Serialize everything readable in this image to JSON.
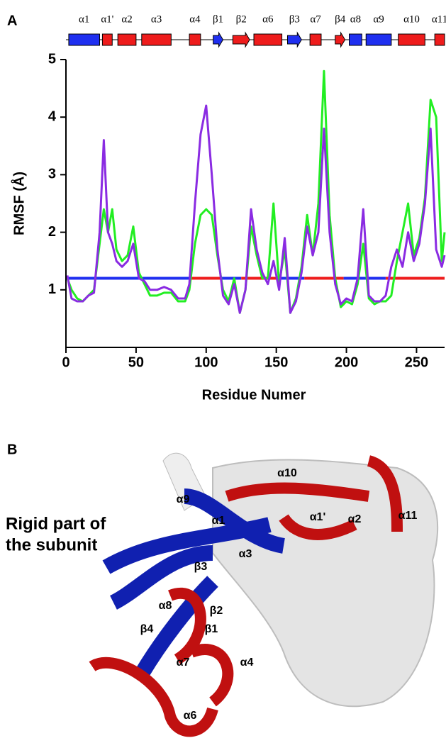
{
  "chart_data": {
    "type": "line",
    "panel_label": "A",
    "xlabel": "Residue Numer",
    "ylabel": "RMSF (Å)",
    "xlim": [
      0,
      270
    ],
    "xticks": [
      0,
      50,
      100,
      150,
      200,
      250
    ],
    "ylim": [
      0,
      5
    ],
    "yticks": [
      1,
      2,
      3,
      4,
      5
    ],
    "x": [
      1,
      4,
      8,
      12,
      16,
      20,
      24,
      27,
      30,
      33,
      36,
      40,
      44,
      48,
      52,
      56,
      60,
      65,
      70,
      75,
      80,
      85,
      88,
      92,
      96,
      100,
      104,
      108,
      112,
      116,
      120,
      124,
      128,
      132,
      136,
      140,
      144,
      148,
      152,
      156,
      160,
      164,
      168,
      172,
      176,
      180,
      184,
      188,
      192,
      196,
      200,
      204,
      208,
      212,
      216,
      220,
      224,
      228,
      232,
      236,
      240,
      244,
      248,
      252,
      256,
      260,
      264,
      268,
      270
    ],
    "series": [
      {
        "color": "#22ee22",
        "values": [
          1.2,
          1.0,
          0.85,
          0.8,
          0.9,
          1.0,
          1.8,
          2.4,
          2.0,
          2.4,
          1.7,
          1.5,
          1.6,
          2.1,
          1.3,
          1.1,
          0.9,
          0.9,
          0.95,
          0.95,
          0.8,
          0.8,
          1.0,
          1.8,
          2.3,
          2.4,
          2.3,
          1.6,
          1.0,
          0.8,
          1.2,
          0.6,
          1.0,
          2.1,
          1.6,
          1.2,
          1.2,
          2.5,
          1.1,
          1.7,
          0.6,
          0.85,
          1.4,
          2.3,
          1.6,
          2.5,
          4.8,
          2.3,
          1.2,
          0.7,
          0.8,
          0.75,
          1.1,
          1.8,
          0.85,
          0.75,
          0.8,
          0.8,
          0.9,
          1.5,
          2.0,
          2.5,
          1.6,
          1.9,
          2.6,
          4.3,
          4.0,
          1.5,
          2.0
        ]
      },
      {
        "color": "#8a2be2",
        "values": [
          1.25,
          0.85,
          0.8,
          0.8,
          0.9,
          0.95,
          2.0,
          3.6,
          2.0,
          1.8,
          1.5,
          1.4,
          1.5,
          1.8,
          1.2,
          1.15,
          1.0,
          1.0,
          1.05,
          1.0,
          0.85,
          0.85,
          1.1,
          2.5,
          3.7,
          4.2,
          3.0,
          1.7,
          0.9,
          0.75,
          1.1,
          0.6,
          1.0,
          2.4,
          1.7,
          1.3,
          1.1,
          1.5,
          1.0,
          1.9,
          0.6,
          0.8,
          1.3,
          2.1,
          1.6,
          2.0,
          3.8,
          2.0,
          1.1,
          0.75,
          0.85,
          0.8,
          1.2,
          2.4,
          0.9,
          0.8,
          0.8,
          0.9,
          1.4,
          1.7,
          1.4,
          2.0,
          1.5,
          1.8,
          2.5,
          3.8,
          1.7,
          1.4,
          1.6
        ]
      }
    ],
    "reference": {
      "value": 1.2,
      "segments": [
        {
          "start": 0,
          "end": 88,
          "color": "#1f2ff0"
        },
        {
          "start": 88,
          "end": 110,
          "color": "#ee1c1c"
        },
        {
          "start": 110,
          "end": 125,
          "color": "#1f2ff0"
        },
        {
          "start": 125,
          "end": 150,
          "color": "#ee1c1c"
        },
        {
          "start": 150,
          "end": 170,
          "color": "#1f2ff0"
        },
        {
          "start": 170,
          "end": 198,
          "color": "#ee1c1c"
        },
        {
          "start": 198,
          "end": 228,
          "color": "#1f2ff0"
        },
        {
          "start": 228,
          "end": 270,
          "color": "#ee1c1c"
        }
      ]
    },
    "secondary_structure": [
      {
        "label": "α1",
        "kind": "helix",
        "start": 2,
        "end": 24,
        "color": "#1f2ff0"
      },
      {
        "label": "α1'",
        "kind": "helix",
        "start": 26,
        "end": 33,
        "color": "#ee1c1c"
      },
      {
        "label": "α2",
        "kind": "helix",
        "start": 37,
        "end": 50,
        "color": "#ee1c1c"
      },
      {
        "label": "α3",
        "kind": "helix",
        "start": 54,
        "end": 75,
        "color": "#ee1c1c"
      },
      {
        "label": "α4",
        "kind": "helix",
        "start": 88,
        "end": 96,
        "color": "#ee1c1c"
      },
      {
        "label": "β1",
        "kind": "strand",
        "start": 105,
        "end": 112,
        "color": "#1f2ff0"
      },
      {
        "label": "β2",
        "kind": "strand",
        "start": 119,
        "end": 131,
        "color": "#ee1c1c"
      },
      {
        "label": "α6",
        "kind": "helix",
        "start": 134,
        "end": 154,
        "color": "#ee1c1c"
      },
      {
        "label": "β3",
        "kind": "strand",
        "start": 158,
        "end": 168,
        "color": "#1f2ff0"
      },
      {
        "label": "α7",
        "kind": "helix",
        "start": 174,
        "end": 182,
        "color": "#ee1c1c"
      },
      {
        "label": "β4",
        "kind": "strand",
        "start": 192,
        "end": 199,
        "color": "#ee1c1c"
      },
      {
        "label": "α8",
        "kind": "helix",
        "start": 202,
        "end": 211,
        "color": "#1f2ff0"
      },
      {
        "label": "α9",
        "kind": "helix",
        "start": 214,
        "end": 232,
        "color": "#1f2ff0"
      },
      {
        "label": "α10",
        "kind": "helix",
        "start": 237,
        "end": 256,
        "color": "#ee1c1c"
      },
      {
        "label": "α11",
        "kind": "helix",
        "start": 263,
        "end": 270,
        "color": "#ee1c1c"
      }
    ]
  },
  "panel_b": {
    "panel_label": "B",
    "caption": [
      "Rigid part of",
      "the subunit"
    ],
    "labels": [
      "α10",
      "α9",
      "α1",
      "α1'",
      "α2",
      "α11",
      "α3",
      "β3",
      "α8",
      "β2",
      "β4",
      "β1",
      "α7",
      "α4",
      "α6"
    ]
  }
}
